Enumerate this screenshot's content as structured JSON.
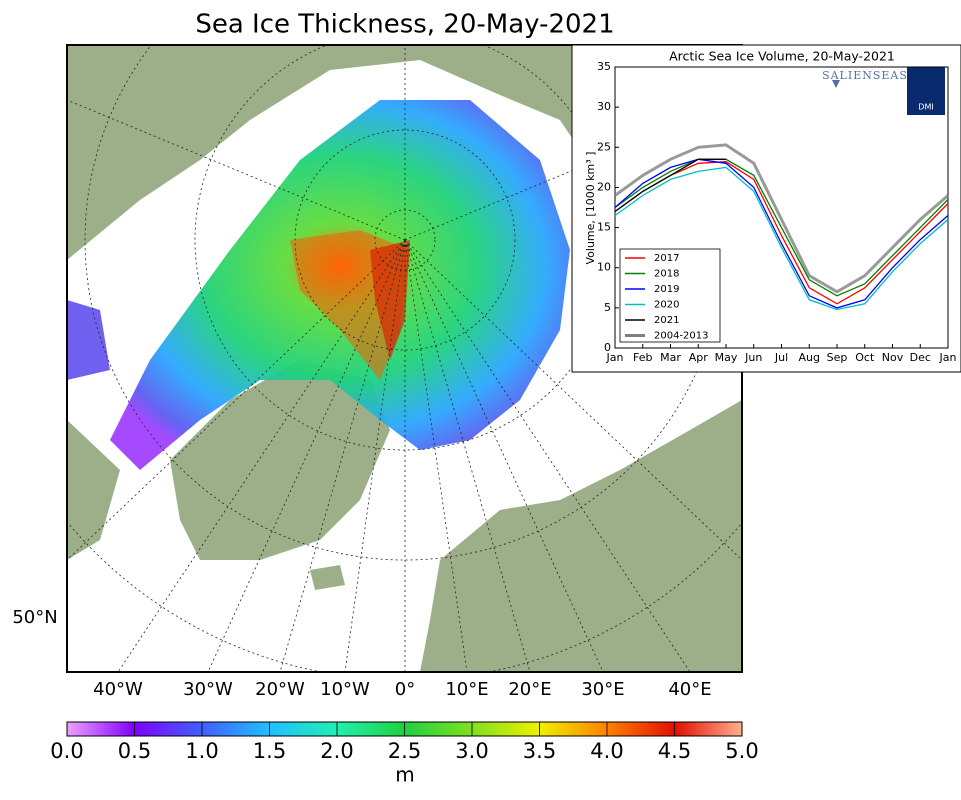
{
  "map": {
    "title": "Sea Ice Thickness, 20-May-2021",
    "lon_labels": [
      "40°W",
      "30°W",
      "20°W",
      "10°W",
      "0°",
      "10°E",
      "20°E",
      "30°E",
      "40°E"
    ],
    "lat_label": "50°N"
  },
  "colorbar": {
    "lim": [
      0,
      5
    ],
    "unit": "m",
    "ticks": [
      {
        "value": 0,
        "label": "0.0"
      },
      {
        "value": 0.5,
        "label": "0.5"
      },
      {
        "value": 1,
        "label": "1.0"
      },
      {
        "value": 1.5,
        "label": "1.5"
      },
      {
        "value": 2,
        "label": "2.0"
      },
      {
        "value": 2.5,
        "label": "2.5"
      },
      {
        "value": 3,
        "label": "3.0"
      },
      {
        "value": 3.5,
        "label": "3.5"
      },
      {
        "value": 4,
        "label": "4.0"
      },
      {
        "value": 4.5,
        "label": "4.5"
      },
      {
        "value": 5,
        "label": "5.0"
      }
    ]
  },
  "chart_data": {
    "type": "line",
    "title": "Arctic Sea Ice Volume, 20-May-2021",
    "y_label": "Volume, [1000 km³ ]",
    "logo": {
      "brand": "SALIENSEAS",
      "org": "DMI"
    },
    "categories": [
      "Jan",
      "Feb",
      "Mar",
      "Apr",
      "May",
      "Jun",
      "Jul",
      "Aug",
      "Sep",
      "Oct",
      "Nov",
      "Dec",
      "Jan"
    ],
    "ylim": [
      0,
      35
    ],
    "yticks": [
      0,
      5,
      10,
      15,
      20,
      25,
      30,
      35
    ],
    "series": [
      {
        "name": "2017",
        "color": "#ff0000",
        "values": [
          17,
          19.5,
          21.5,
          23,
          23.2,
          21,
          14,
          7.5,
          5.5,
          7.5,
          11,
          14.5,
          18
        ]
      },
      {
        "name": "2018",
        "color": "#008000",
        "values": [
          17.5,
          20,
          22,
          23.5,
          23.5,
          21.5,
          15,
          8.5,
          6.5,
          8,
          11.5,
          15,
          18.5
        ]
      },
      {
        "name": "2019",
        "color": "#0000ff",
        "values": [
          17.5,
          20.5,
          22.5,
          23.5,
          23,
          20,
          13,
          6.5,
          5,
          6,
          10,
          13.5,
          16.5
        ]
      },
      {
        "name": "2020",
        "color": "#00bfbf",
        "values": [
          16.5,
          19,
          21,
          22,
          22.5,
          19.5,
          12.5,
          6,
          4.8,
          5.5,
          9.5,
          13,
          16
        ]
      },
      {
        "name": "2021",
        "color": "#000000",
        "values": [
          17,
          19.5,
          21.5,
          23.5,
          23.5,
          null,
          null,
          null,
          null,
          null,
          null,
          null,
          null
        ]
      },
      {
        "name": "2004-2013",
        "color": "#808080",
        "values": [
          19,
          21.5,
          23.5,
          25,
          25.3,
          23,
          16,
          9,
          7,
          9,
          12.5,
          16,
          19
        ]
      }
    ]
  }
}
